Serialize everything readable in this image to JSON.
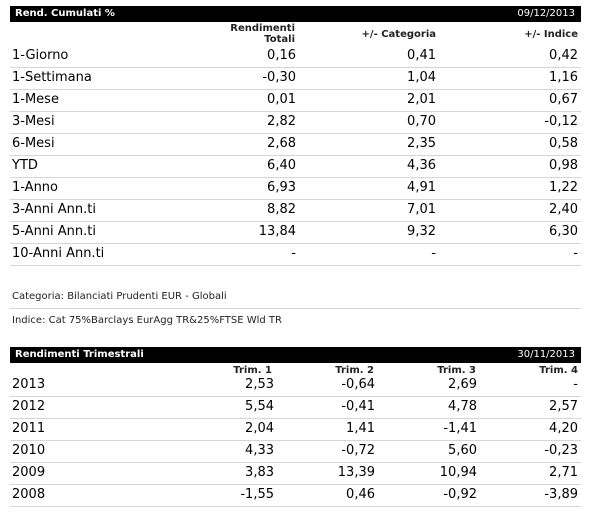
{
  "cumulative": {
    "title": "Rend. Cumulati %",
    "date": "09/12/2013",
    "headers": {
      "total_line1": "Rendimenti",
      "total_line2": "Totali",
      "category": "+/- Categoria",
      "index": "+/- Indice"
    },
    "rows": [
      {
        "label": "1-Giorno",
        "total": "0,16",
        "category": "0,41",
        "index": "0,42"
      },
      {
        "label": "1-Settimana",
        "total": "-0,30",
        "category": "1,04",
        "index": "1,16"
      },
      {
        "label": "1-Mese",
        "total": "0,01",
        "category": "2,01",
        "index": "0,67"
      },
      {
        "label": "3-Mesi",
        "total": "2,82",
        "category": "0,70",
        "index": "-0,12"
      },
      {
        "label": "6-Mesi",
        "total": "2,68",
        "category": "2,35",
        "index": "0,58"
      },
      {
        "label": "YTD",
        "total": "6,40",
        "category": "4,36",
        "index": "0,98"
      },
      {
        "label": "1-Anno",
        "total": "6,93",
        "category": "4,91",
        "index": "1,22"
      },
      {
        "label": "3-Anni Ann.ti",
        "total": "8,82",
        "category": "7,01",
        "index": "2,40"
      },
      {
        "label": "5-Anni Ann.ti",
        "total": "13,84",
        "category": "9,32",
        "index": "6,30"
      },
      {
        "label": "10-Anni Ann.ti",
        "total": "-",
        "category": "-",
        "index": "-"
      }
    ],
    "category_note": "Categoria: Bilanciati Prudenti EUR - Globali",
    "index_note": "Indice: Cat 75%Barclays EurAgg TR&25%FTSE Wld TR"
  },
  "quarterly": {
    "title": "Rendimenti Trimestrali",
    "date": "30/11/2013",
    "headers": [
      "Trim. 1",
      "Trim. 2",
      "Trim. 3",
      "Trim. 4"
    ],
    "rows": [
      {
        "year": "2013",
        "q": [
          "2,53",
          "-0,64",
          "2,69",
          "-"
        ]
      },
      {
        "year": "2012",
        "q": [
          "5,54",
          "-0,41",
          "4,78",
          "2,57"
        ]
      },
      {
        "year": "2011",
        "q": [
          "2,04",
          "1,41",
          "-1,41",
          "4,20"
        ]
      },
      {
        "year": "2010",
        "q": [
          "4,33",
          "-0,72",
          "5,60",
          "-0,23"
        ]
      },
      {
        "year": "2009",
        "q": [
          "3,83",
          "13,39",
          "10,94",
          "2,71"
        ]
      },
      {
        "year": "2008",
        "q": [
          "-1,55",
          "0,46",
          "-0,92",
          "-3,89"
        ]
      }
    ]
  }
}
